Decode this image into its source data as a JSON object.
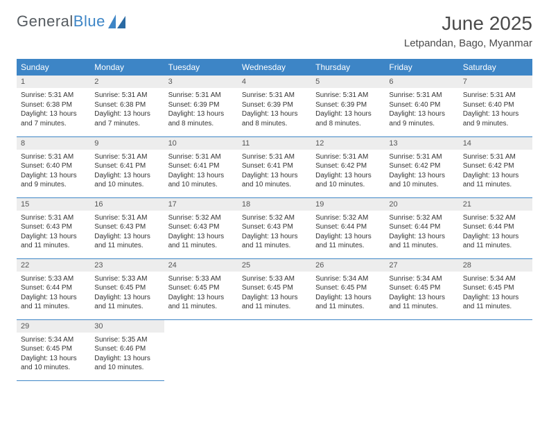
{
  "logo": {
    "text1": "General",
    "text2": "Blue"
  },
  "header": {
    "title": "June 2025",
    "location": "Letpandan, Bago, Myanmar"
  },
  "colors": {
    "header_bg": "#3d85c6",
    "header_text": "#ffffff",
    "daynum_bg": "#ededed",
    "border": "#3d85c6",
    "text": "#333333",
    "logo_gray": "#555b60",
    "logo_blue": "#3d85c6"
  },
  "weekdays": [
    "Sunday",
    "Monday",
    "Tuesday",
    "Wednesday",
    "Thursday",
    "Friday",
    "Saturday"
  ],
  "days": [
    {
      "n": "1",
      "sr": "5:31 AM",
      "ss": "6:38 PM",
      "dl": "13 hours and 7 minutes."
    },
    {
      "n": "2",
      "sr": "5:31 AM",
      "ss": "6:38 PM",
      "dl": "13 hours and 7 minutes."
    },
    {
      "n": "3",
      "sr": "5:31 AM",
      "ss": "6:39 PM",
      "dl": "13 hours and 8 minutes."
    },
    {
      "n": "4",
      "sr": "5:31 AM",
      "ss": "6:39 PM",
      "dl": "13 hours and 8 minutes."
    },
    {
      "n": "5",
      "sr": "5:31 AM",
      "ss": "6:39 PM",
      "dl": "13 hours and 8 minutes."
    },
    {
      "n": "6",
      "sr": "5:31 AM",
      "ss": "6:40 PM",
      "dl": "13 hours and 9 minutes."
    },
    {
      "n": "7",
      "sr": "5:31 AM",
      "ss": "6:40 PM",
      "dl": "13 hours and 9 minutes."
    },
    {
      "n": "8",
      "sr": "5:31 AM",
      "ss": "6:40 PM",
      "dl": "13 hours and 9 minutes."
    },
    {
      "n": "9",
      "sr": "5:31 AM",
      "ss": "6:41 PM",
      "dl": "13 hours and 10 minutes."
    },
    {
      "n": "10",
      "sr": "5:31 AM",
      "ss": "6:41 PM",
      "dl": "13 hours and 10 minutes."
    },
    {
      "n": "11",
      "sr": "5:31 AM",
      "ss": "6:41 PM",
      "dl": "13 hours and 10 minutes."
    },
    {
      "n": "12",
      "sr": "5:31 AM",
      "ss": "6:42 PM",
      "dl": "13 hours and 10 minutes."
    },
    {
      "n": "13",
      "sr": "5:31 AM",
      "ss": "6:42 PM",
      "dl": "13 hours and 10 minutes."
    },
    {
      "n": "14",
      "sr": "5:31 AM",
      "ss": "6:42 PM",
      "dl": "13 hours and 11 minutes."
    },
    {
      "n": "15",
      "sr": "5:31 AM",
      "ss": "6:43 PM",
      "dl": "13 hours and 11 minutes."
    },
    {
      "n": "16",
      "sr": "5:31 AM",
      "ss": "6:43 PM",
      "dl": "13 hours and 11 minutes."
    },
    {
      "n": "17",
      "sr": "5:32 AM",
      "ss": "6:43 PM",
      "dl": "13 hours and 11 minutes."
    },
    {
      "n": "18",
      "sr": "5:32 AM",
      "ss": "6:43 PM",
      "dl": "13 hours and 11 minutes."
    },
    {
      "n": "19",
      "sr": "5:32 AM",
      "ss": "6:44 PM",
      "dl": "13 hours and 11 minutes."
    },
    {
      "n": "20",
      "sr": "5:32 AM",
      "ss": "6:44 PM",
      "dl": "13 hours and 11 minutes."
    },
    {
      "n": "21",
      "sr": "5:32 AM",
      "ss": "6:44 PM",
      "dl": "13 hours and 11 minutes."
    },
    {
      "n": "22",
      "sr": "5:33 AM",
      "ss": "6:44 PM",
      "dl": "13 hours and 11 minutes."
    },
    {
      "n": "23",
      "sr": "5:33 AM",
      "ss": "6:45 PM",
      "dl": "13 hours and 11 minutes."
    },
    {
      "n": "24",
      "sr": "5:33 AM",
      "ss": "6:45 PM",
      "dl": "13 hours and 11 minutes."
    },
    {
      "n": "25",
      "sr": "5:33 AM",
      "ss": "6:45 PM",
      "dl": "13 hours and 11 minutes."
    },
    {
      "n": "26",
      "sr": "5:34 AM",
      "ss": "6:45 PM",
      "dl": "13 hours and 11 minutes."
    },
    {
      "n": "27",
      "sr": "5:34 AM",
      "ss": "6:45 PM",
      "dl": "13 hours and 11 minutes."
    },
    {
      "n": "28",
      "sr": "5:34 AM",
      "ss": "6:45 PM",
      "dl": "13 hours and 11 minutes."
    },
    {
      "n": "29",
      "sr": "5:34 AM",
      "ss": "6:45 PM",
      "dl": "13 hours and 10 minutes."
    },
    {
      "n": "30",
      "sr": "5:35 AM",
      "ss": "6:46 PM",
      "dl": "13 hours and 10 minutes."
    }
  ],
  "labels": {
    "sunrise": "Sunrise:",
    "sunset": "Sunset:",
    "daylight": "Daylight:"
  }
}
